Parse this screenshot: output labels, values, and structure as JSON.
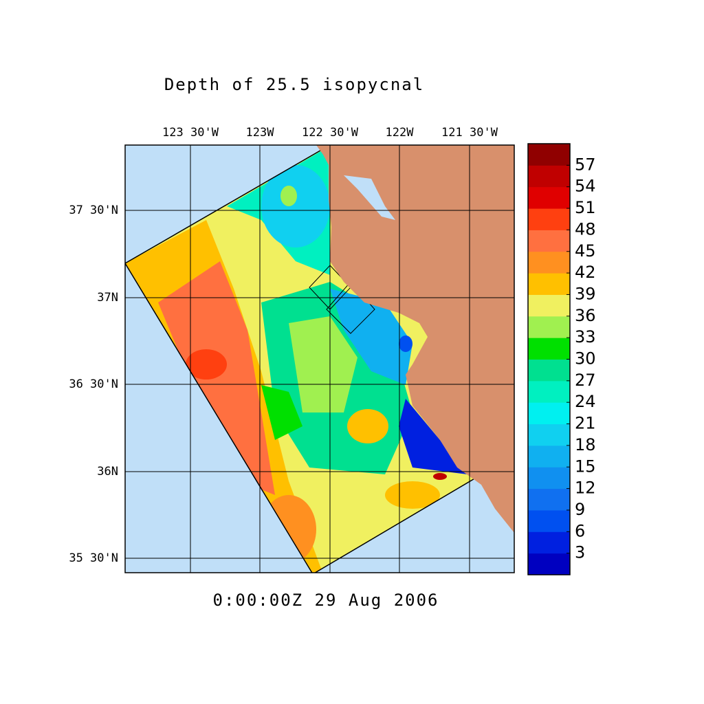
{
  "title": "Depth of 25.5 isopycnal",
  "time_label": "0:00:00Z  29 Aug 2006",
  "lon_labels": [
    "123 30'W",
    "123W",
    "122 30'W",
    "122W",
    "121 30'W"
  ],
  "lat_labels": [
    "37 30'N",
    "37N",
    "36 30'N",
    "36N",
    "35 30'N"
  ],
  "colorbar": {
    "ticks": [
      3,
      6,
      9,
      12,
      15,
      18,
      21,
      24,
      27,
      30,
      33,
      36,
      39,
      42,
      45,
      48,
      51,
      54,
      57
    ],
    "colors": [
      "#0000c0",
      "#0020e0",
      "#0050f0",
      "#1070f0",
      "#1090f0",
      "#10b0f0",
      "#10d0f0",
      "#00f0f0",
      "#00f0c0",
      "#00e090",
      "#00e000",
      "#a0f050",
      "#f0f060",
      "#ffc000",
      "#ff9020",
      "#ff7040",
      "#ff4010",
      "#e00000",
      "#c00000",
      "#900000"
    ]
  }
}
